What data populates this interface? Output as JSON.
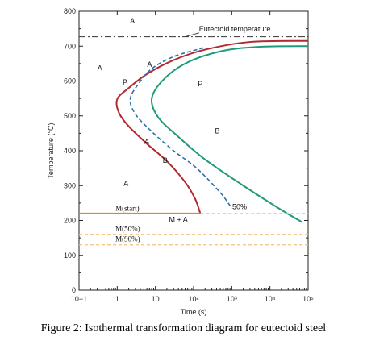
{
  "caption": "Figure 2: Isothermal transformation diagram for eutectoid steel",
  "chart_data": {
    "type": "line",
    "title": "",
    "xlabel": "Time (s)",
    "ylabel": "Temperature (°C)",
    "xscale": "log",
    "xlim": [
      0.1,
      100000
    ],
    "ylim": [
      0,
      800
    ],
    "grid": false,
    "x_tick_labels": [
      "10−1",
      "1",
      "10",
      "10²",
      "10³",
      "10⁴",
      "10⁵"
    ],
    "x_tick_values": [
      0.1,
      1,
      10,
      100,
      1000,
      10000,
      100000
    ],
    "y_tick_labels": [
      "0",
      "100",
      "200",
      "300",
      "400",
      "500",
      "600",
      "700",
      "800"
    ],
    "y_tick_values": [
      0,
      100,
      200,
      300,
      400,
      500,
      600,
      700,
      800
    ],
    "colors": {
      "start_curve": "#b22a2e",
      "finish_curve": "#1f9a7a",
      "fifty_percent_curve": "#2f6fb0",
      "m_start_line": "#e08a1e",
      "m_dashed_lines": "#f0c27a",
      "eutectoid_line": "#333333",
      "reference_line": "#555555"
    },
    "eutectoid_temperature": 727,
    "annotations": {
      "eutectoid_label": "Eutectoid temperature",
      "fifty_percent_label": "50%",
      "m_start": "M(start)",
      "m_fifty": "M(50%)",
      "m_ninety": "M(90%)",
      "m_plus_a": "M + A",
      "regions": [
        "A",
        "A",
        "A",
        "P",
        "B"
      ],
      "curve_point_labels": [
        "A",
        "P",
        "A",
        "B"
      ]
    },
    "series": [
      {
        "role": "start_curve",
        "points": [
          [
            100000,
            715
          ],
          [
            3000,
            712
          ],
          [
            200,
            690
          ],
          [
            30,
            660
          ],
          [
            6,
            620
          ],
          [
            2,
            580
          ],
          [
            1,
            548
          ],
          [
            1.1,
            510
          ],
          [
            2,
            470
          ],
          [
            6,
            420
          ],
          [
            20,
            370
          ],
          [
            60,
            310
          ],
          [
            110,
            262
          ],
          [
            150,
            220
          ]
        ]
      },
      {
        "role": "fifty_percent_curve",
        "points": [
          [
            180,
            695
          ],
          [
            30,
            670
          ],
          [
            8,
            635
          ],
          [
            3.5,
            590
          ],
          [
            2.2,
            548
          ],
          [
            3,
            505
          ],
          [
            8,
            455
          ],
          [
            30,
            400
          ],
          [
            120,
            350
          ],
          [
            500,
            280
          ],
          [
            1000,
            235
          ]
        ]
      },
      {
        "role": "finish_curve",
        "points": [
          [
            100000,
            700
          ],
          [
            5000,
            698
          ],
          [
            500,
            685
          ],
          [
            60,
            650
          ],
          [
            15,
            600
          ],
          [
            8,
            548
          ],
          [
            12,
            495
          ],
          [
            40,
            440
          ],
          [
            200,
            375
          ],
          [
            2000,
            300
          ],
          [
            20000,
            230
          ],
          [
            70000,
            195
          ]
        ]
      },
      {
        "role": "m_start",
        "points": [
          [
            0.1,
            220
          ],
          [
            150,
            220
          ]
        ]
      },
      {
        "role": "m_start_extension",
        "points": [
          [
            150,
            220
          ],
          [
            100000,
            220
          ]
        ]
      },
      {
        "role": "m_fifty",
        "points": [
          [
            0.1,
            160
          ],
          [
            100000,
            160
          ]
        ]
      },
      {
        "role": "m_ninety",
        "points": [
          [
            0.1,
            130
          ],
          [
            100000,
            130
          ]
        ]
      },
      {
        "role": "eutectoid",
        "points": [
          [
            0.1,
            727
          ],
          [
            100000,
            727
          ]
        ]
      },
      {
        "role": "reference_540",
        "points": [
          [
            0.9,
            540
          ],
          [
            400,
            540
          ]
        ]
      }
    ]
  }
}
